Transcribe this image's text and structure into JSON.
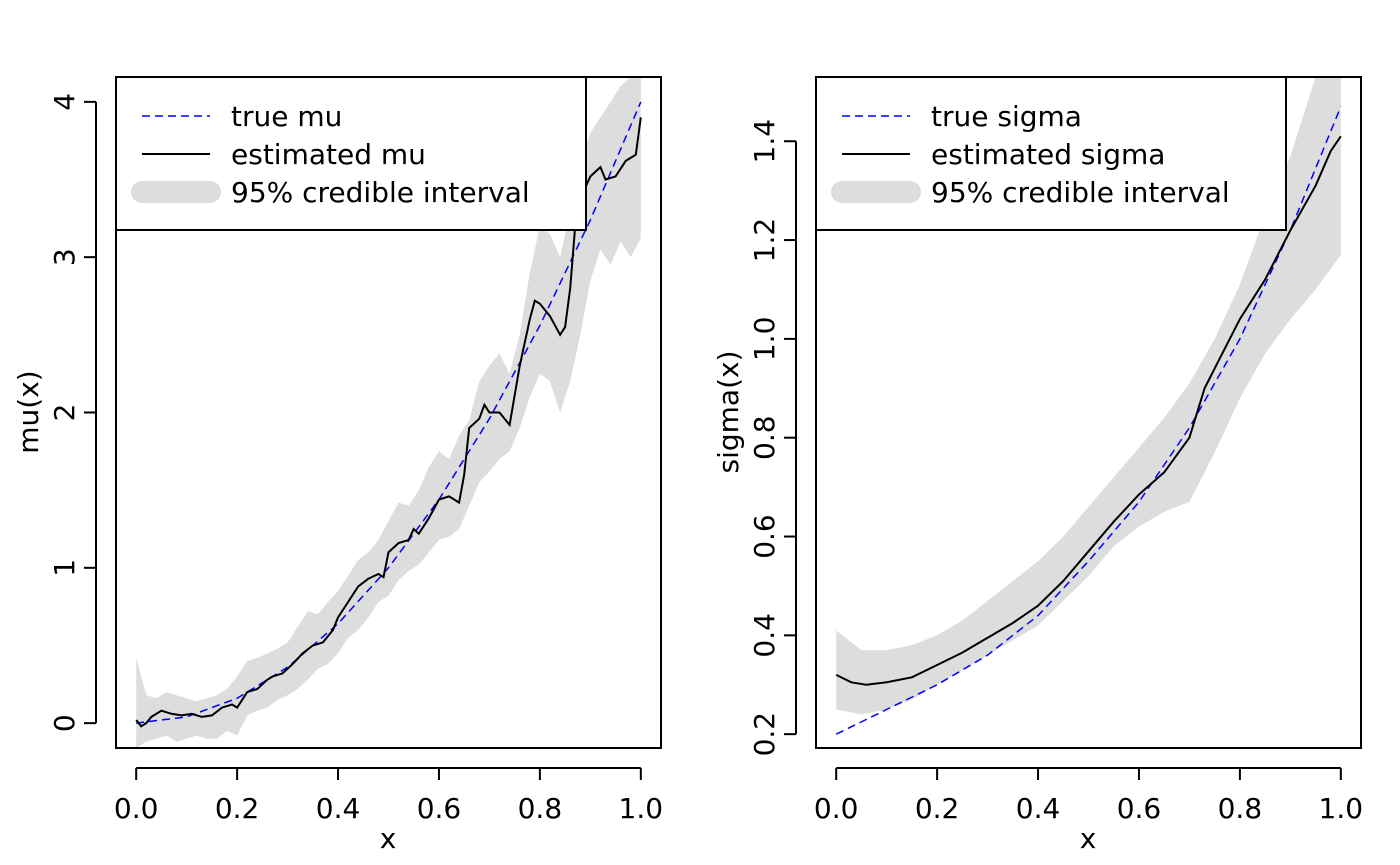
{
  "chart_data": [
    {
      "type": "line",
      "xlabel": "x",
      "ylabel": "mu(x)",
      "xlim": [
        -0.04,
        1.04
      ],
      "ylim": [
        -0.16,
        4.16
      ],
      "xticks": [
        0.0,
        0.2,
        0.4,
        0.6,
        0.8,
        1.0
      ],
      "xtick_labels": [
        "0.0",
        "0.2",
        "0.4",
        "0.6",
        "0.8",
        "1.0"
      ],
      "yticks": [
        0,
        1,
        2,
        3,
        4
      ],
      "ytick_labels": [
        "0",
        "1",
        "2",
        "3",
        "4"
      ],
      "legend_position": "top-left",
      "legend": [
        {
          "label": "true mu",
          "style": "dashed",
          "color": "#0000ff"
        },
        {
          "label": "estimated mu",
          "style": "solid",
          "color": "#000000"
        },
        {
          "label": "95% credible interval",
          "style": "band",
          "color": "#dddddd"
        }
      ],
      "series": [
        {
          "name": "true mu",
          "x": [
            0.0,
            0.1,
            0.2,
            0.3,
            0.4,
            0.5,
            0.6,
            0.7,
            0.8,
            0.9,
            1.0
          ],
          "y": [
            0.0,
            0.04,
            0.16,
            0.36,
            0.64,
            1.0,
            1.44,
            1.96,
            2.56,
            3.24,
            4.0
          ]
        },
        {
          "name": "estimated mu",
          "x": [
            0.0,
            0.01,
            0.02,
            0.03,
            0.05,
            0.07,
            0.09,
            0.11,
            0.13,
            0.15,
            0.17,
            0.19,
            0.2,
            0.21,
            0.22,
            0.24,
            0.26,
            0.27,
            0.29,
            0.31,
            0.33,
            0.35,
            0.37,
            0.39,
            0.4,
            0.42,
            0.44,
            0.46,
            0.48,
            0.49,
            0.5,
            0.52,
            0.54,
            0.55,
            0.56,
            0.58,
            0.6,
            0.62,
            0.64,
            0.65,
            0.66,
            0.68,
            0.69,
            0.7,
            0.72,
            0.74,
            0.76,
            0.78,
            0.79,
            0.8,
            0.82,
            0.84,
            0.85,
            0.86,
            0.87,
            0.88,
            0.9,
            0.92,
            0.93,
            0.95,
            0.97,
            0.99,
            1.0
          ],
          "y": [
            0.02,
            -0.02,
            0.0,
            0.04,
            0.08,
            0.06,
            0.05,
            0.06,
            0.04,
            0.05,
            0.1,
            0.12,
            0.1,
            0.15,
            0.2,
            0.22,
            0.28,
            0.3,
            0.32,
            0.38,
            0.45,
            0.5,
            0.52,
            0.6,
            0.68,
            0.78,
            0.88,
            0.93,
            0.96,
            0.94,
            1.1,
            1.16,
            1.18,
            1.25,
            1.22,
            1.32,
            1.44,
            1.46,
            1.42,
            1.6,
            1.9,
            1.96,
            2.05,
            2.0,
            2.0,
            1.92,
            2.3,
            2.6,
            2.72,
            2.7,
            2.62,
            2.5,
            2.55,
            2.8,
            3.2,
            3.38,
            3.52,
            3.58,
            3.5,
            3.52,
            3.62,
            3.66,
            3.9
          ]
        }
      ],
      "band": {
        "name": "95% credible interval",
        "x": [
          0.0,
          0.02,
          0.04,
          0.06,
          0.08,
          0.1,
          0.12,
          0.14,
          0.16,
          0.18,
          0.2,
          0.22,
          0.24,
          0.26,
          0.28,
          0.3,
          0.32,
          0.34,
          0.36,
          0.38,
          0.4,
          0.42,
          0.44,
          0.46,
          0.48,
          0.5,
          0.52,
          0.54,
          0.56,
          0.58,
          0.6,
          0.62,
          0.64,
          0.66,
          0.68,
          0.7,
          0.72,
          0.74,
          0.76,
          0.78,
          0.8,
          0.82,
          0.84,
          0.86,
          0.88,
          0.9,
          0.92,
          0.94,
          0.96,
          0.98,
          1.0
        ],
        "lower": [
          -0.16,
          -0.12,
          -0.1,
          -0.08,
          -0.12,
          -0.1,
          -0.08,
          -0.1,
          -0.1,
          -0.05,
          -0.08,
          0.05,
          0.08,
          0.1,
          0.15,
          0.18,
          0.22,
          0.28,
          0.35,
          0.38,
          0.45,
          0.55,
          0.6,
          0.68,
          0.78,
          0.82,
          0.92,
          0.98,
          1.02,
          1.1,
          1.18,
          1.2,
          1.25,
          1.4,
          1.55,
          1.62,
          1.7,
          1.75,
          1.9,
          2.1,
          2.25,
          2.2,
          2.0,
          2.2,
          2.5,
          2.85,
          3.05,
          2.95,
          3.1,
          3.0,
          3.12
        ],
        "upper": [
          0.42,
          0.18,
          0.16,
          0.2,
          0.18,
          0.16,
          0.14,
          0.16,
          0.18,
          0.22,
          0.3,
          0.4,
          0.42,
          0.45,
          0.48,
          0.52,
          0.62,
          0.72,
          0.7,
          0.78,
          0.85,
          0.95,
          1.05,
          1.1,
          1.18,
          1.3,
          1.42,
          1.4,
          1.5,
          1.65,
          1.75,
          1.7,
          1.85,
          1.95,
          2.2,
          2.3,
          2.38,
          2.25,
          2.5,
          2.9,
          3.2,
          3.15,
          3.0,
          3.3,
          3.6,
          3.8,
          3.9,
          4.0,
          4.1,
          4.16,
          4.16
        ]
      }
    },
    {
      "type": "line",
      "xlabel": "x",
      "ylabel": "sigma(x)",
      "xlim": [
        -0.04,
        1.04
      ],
      "ylim": [
        0.172,
        1.53
      ],
      "xticks": [
        0.0,
        0.2,
        0.4,
        0.6,
        0.8,
        1.0
      ],
      "xtick_labels": [
        "0.0",
        "0.2",
        "0.4",
        "0.6",
        "0.8",
        "1.0"
      ],
      "yticks": [
        0.2,
        0.4,
        0.6,
        0.8,
        1.0,
        1.2,
        1.4
      ],
      "ytick_labels": [
        "0.2",
        "0.4",
        "0.6",
        "0.8",
        "1.0",
        "1.2",
        "1.4"
      ],
      "legend_position": "top-left",
      "legend": [
        {
          "label": "true sigma",
          "style": "dashed",
          "color": "#0000ff"
        },
        {
          "label": "estimated sigma",
          "style": "solid",
          "color": "#000000"
        },
        {
          "label": "95% credible interval",
          "style": "band",
          "color": "#dddddd"
        }
      ],
      "series": [
        {
          "name": "true sigma",
          "x": [
            0.0,
            0.1,
            0.2,
            0.3,
            0.4,
            0.5,
            0.6,
            0.7,
            0.8,
            0.9,
            1.0
          ],
          "y": [
            0.2,
            0.25,
            0.3,
            0.36,
            0.44,
            0.55,
            0.67,
            0.82,
            1.0,
            1.22,
            1.47
          ]
        },
        {
          "name": "estimated sigma",
          "x": [
            0.0,
            0.03,
            0.06,
            0.1,
            0.15,
            0.2,
            0.25,
            0.3,
            0.35,
            0.4,
            0.45,
            0.5,
            0.55,
            0.6,
            0.65,
            0.7,
            0.73,
            0.76,
            0.8,
            0.85,
            0.9,
            0.95,
            0.98,
            1.0
          ],
          "y": [
            0.32,
            0.305,
            0.3,
            0.305,
            0.315,
            0.34,
            0.365,
            0.395,
            0.425,
            0.46,
            0.51,
            0.57,
            0.63,
            0.685,
            0.73,
            0.8,
            0.9,
            0.96,
            1.04,
            1.12,
            1.22,
            1.31,
            1.38,
            1.41
          ]
        }
      ],
      "band": {
        "name": "95% credible interval",
        "x": [
          0.0,
          0.05,
          0.1,
          0.15,
          0.2,
          0.25,
          0.3,
          0.35,
          0.4,
          0.45,
          0.5,
          0.55,
          0.6,
          0.65,
          0.7,
          0.75,
          0.8,
          0.85,
          0.9,
          0.95,
          1.0
        ],
        "lower": [
          0.25,
          0.24,
          0.25,
          0.27,
          0.3,
          0.33,
          0.36,
          0.39,
          0.42,
          0.47,
          0.52,
          0.58,
          0.62,
          0.65,
          0.67,
          0.77,
          0.88,
          0.97,
          1.04,
          1.1,
          1.17
        ],
        "upper": [
          0.41,
          0.37,
          0.37,
          0.38,
          0.4,
          0.43,
          0.47,
          0.51,
          0.55,
          0.6,
          0.66,
          0.72,
          0.78,
          0.84,
          0.91,
          1.0,
          1.11,
          1.25,
          1.37,
          1.53,
          1.53
        ]
      }
    }
  ]
}
